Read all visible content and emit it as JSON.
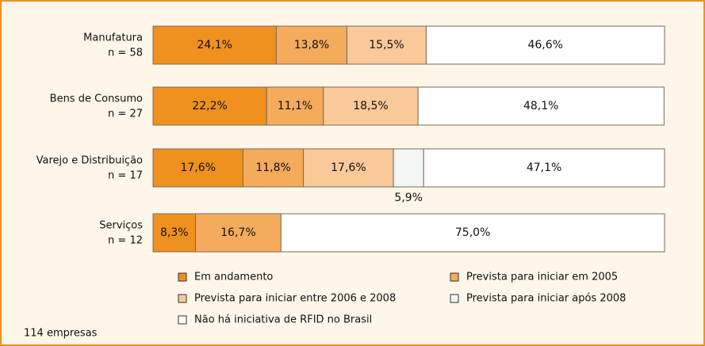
{
  "chart_data": {
    "type": "stacked_bar_horizontal",
    "categories": [
      "Manufatura",
      "Bens de Consumo",
      "Varejo e Distribuição",
      "Serviços"
    ],
    "category_notes": [
      "n = 58",
      "n = 27",
      "n = 17",
      "n = 12"
    ],
    "xlim": [
      0,
      100
    ],
    "series": [
      {
        "name": "Em andamento",
        "color": "#f0901e",
        "values": [
          24.1,
          22.2,
          17.6,
          8.3
        ],
        "value_labels": [
          "24,1%",
          "22,2%",
          "17,6%",
          "8,3%"
        ]
      },
      {
        "name": "Prevista para iniciar em 2005",
        "color": "#f5ab5c",
        "values": [
          13.8,
          11.1,
          11.8,
          16.7
        ],
        "value_labels": [
          "13,8%",
          "11,1%",
          "11,8%",
          "16,7%"
        ]
      },
      {
        "name": "Prevista para iniciar entre 2006 e 2008",
        "color": "#f9c99a",
        "values": [
          15.5,
          18.5,
          17.6,
          0
        ],
        "value_labels": [
          "15,5%",
          "18,5%",
          "17,6%",
          null
        ]
      },
      {
        "name": "Prevista para iniciar após 2008",
        "color": "#f2f6f5",
        "values": [
          0,
          0,
          5.9,
          0
        ],
        "value_labels": [
          null,
          null,
          "5,9%",
          null
        ]
      },
      {
        "name": "Não há iniciativa de RFID no Brasil",
        "color": "#ffffff",
        "values": [
          46.6,
          48.1,
          47.1,
          75.0
        ],
        "value_labels": [
          "46,6%",
          "48,1%",
          "47,1%",
          "75,0%"
        ]
      }
    ],
    "footnote": "114 empresas"
  }
}
